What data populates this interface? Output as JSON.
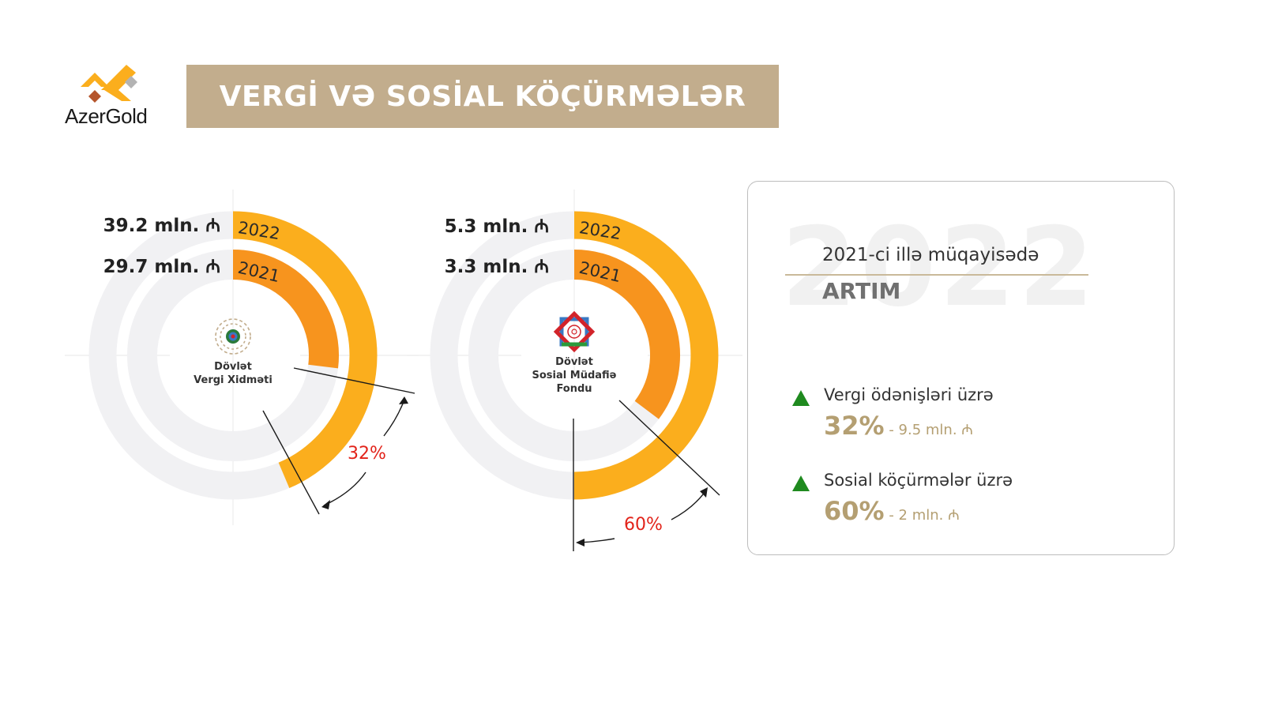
{
  "header": {
    "logo_text": "AzerGold",
    "title": "VERGİ VƏ SOSİAL KÖÇÜRMƏLƏR"
  },
  "colors": {
    "banner": "#c2ad8d",
    "ring_2022": "#fbae1d",
    "ring_2021": "#f7941e",
    "track": "#f1f1f3",
    "pct_red": "#e2231a",
    "gold_text": "#b49f72",
    "up_arrow": "#1f8a1f"
  },
  "charts": [
    {
      "center_label_lines": [
        "Dövlət",
        "Vergi Xidməti"
      ],
      "logo_icon": "state-tax-service-emblem",
      "value_2022": "39.2 mln. ₼",
      "value_2021": "29.7 mln. ₼",
      "year_2022": "2022",
      "year_2021": "2021",
      "growth_label": "32%"
    },
    {
      "center_label_lines": [
        "Dövlət",
        "Sosial Müdafiə",
        "Fondu"
      ],
      "logo_icon": "social-protection-fund-emblem",
      "value_2022": "5.3 mln. ₼",
      "value_2021": "3.3 mln. ₼",
      "year_2022": "2022",
      "year_2021": "2021",
      "growth_label": "60%"
    }
  ],
  "panel": {
    "bg_year": "2022",
    "subtitle": "2021-ci illə müqayisədə",
    "heading": "ARTIM",
    "stats": [
      {
        "label": "Vergi ödənişləri üzrə",
        "pct": "32%",
        "detail": " - 9.5 mln. ₼"
      },
      {
        "label": "Sosial köçürmələr üzrə",
        "pct": "60%",
        "detail": " - 2 mln. ₼"
      }
    ]
  },
  "chart_data": [
    {
      "type": "pie",
      "subtype": "radial-bar",
      "title": "Dövlət Vergi Xidməti",
      "categories": [
        "2022",
        "2021"
      ],
      "values": [
        39.2,
        29.7
      ],
      "unit": "mln. ₼",
      "arc_end_degrees": [
        157,
        97
      ],
      "annotation": "32%",
      "growth": {
        "percent": 32,
        "absolute": 9.5
      }
    },
    {
      "type": "pie",
      "subtype": "radial-bar",
      "title": "Dövlət Sosial Müdafiə Fondu",
      "categories": [
        "2022",
        "2021"
      ],
      "values": [
        5.3,
        3.3
      ],
      "unit": "mln. ₼",
      "arc_end_degrees": [
        180,
        127
      ],
      "annotation": "60%",
      "growth": {
        "percent": 60,
        "absolute": 2
      }
    }
  ]
}
